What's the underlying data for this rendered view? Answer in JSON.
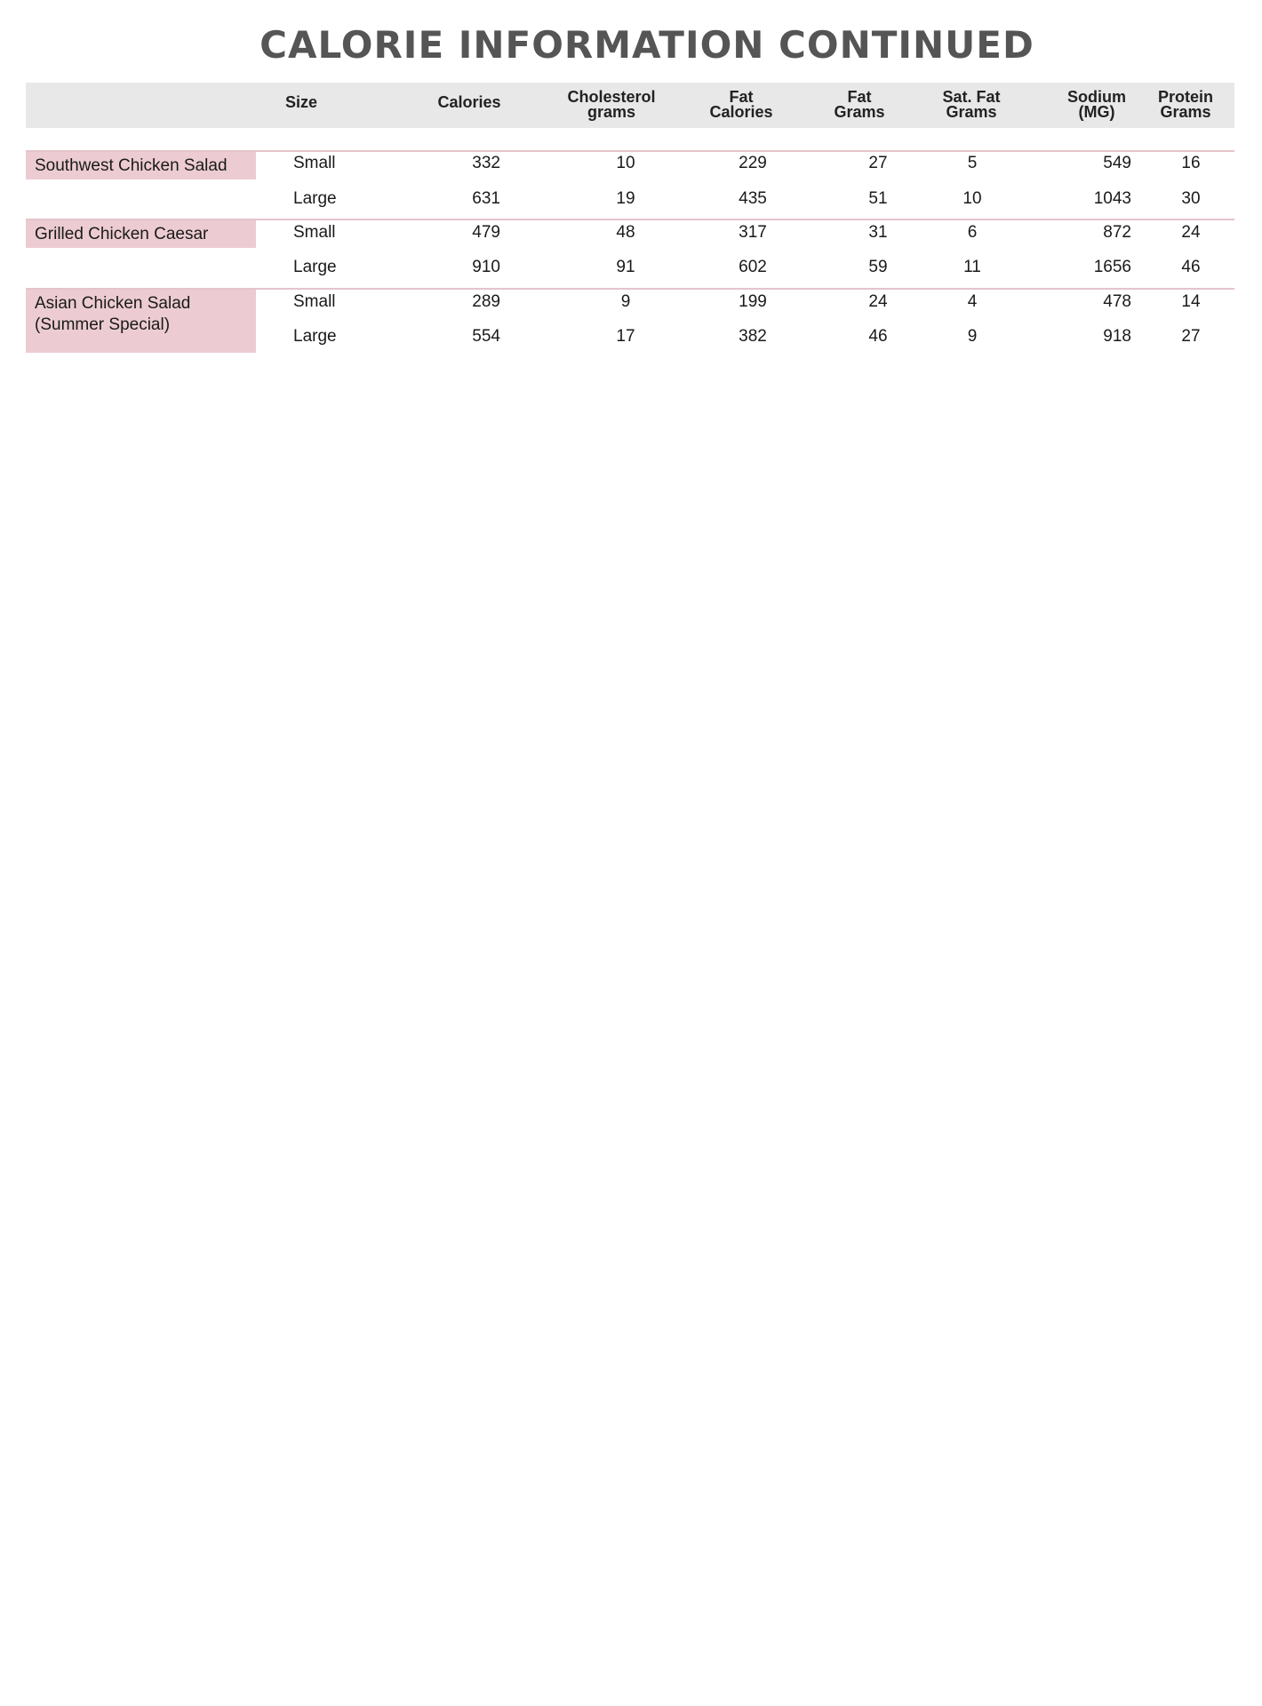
{
  "title": "CALORIE INFORMATION CONTINUED",
  "columns": [
    "Size",
    "Calories",
    "Cholesterol grams",
    "Fat Calories",
    "Fat Grams",
    "Sat. Fat Grams",
    "Sodium (MG)",
    "Protein Grams"
  ],
  "header_lines": [
    [
      "Size"
    ],
    [
      "Calories"
    ],
    [
      "Cholesterol",
      "grams"
    ],
    [
      "Fat",
      "Calories"
    ],
    [
      "Fat",
      "Grams"
    ],
    [
      "Sat. Fat",
      "Grams"
    ],
    [
      "Sodium",
      "(MG)"
    ],
    [
      "Protein",
      "Grams"
    ]
  ],
  "items": [
    {
      "name": "Southwest Chicken Salad",
      "rows": [
        [
          "Small",
          "332",
          "10",
          "229",
          "27",
          "5",
          "549",
          "16"
        ],
        [
          "Large",
          "631",
          "19",
          "435",
          "51",
          "10",
          "1043",
          "30"
        ]
      ]
    },
    {
      "name": "Grilled Chicken Caesar",
      "rows": [
        [
          "Small",
          "479",
          "48",
          "317",
          "31",
          "6",
          "872",
          "24"
        ],
        [
          "Large",
          "910",
          "91",
          "602",
          "59",
          "11",
          "1656",
          "46"
        ]
      ]
    },
    {
      "name": "Asian Chicken Salad (Summer Special)",
      "rows": [
        [
          "Small",
          "289",
          "9",
          "199",
          "24",
          "4",
          "478",
          "14"
        ],
        [
          "Large",
          "554",
          "17",
          "382",
          "46",
          "9",
          "918",
          "27"
        ]
      ]
    }
  ],
  "colors": {
    "header_bg": "#e8e8e8",
    "label_bg": "#ecccd2",
    "divider": "#e4c4cb",
    "title": "#555555"
  }
}
